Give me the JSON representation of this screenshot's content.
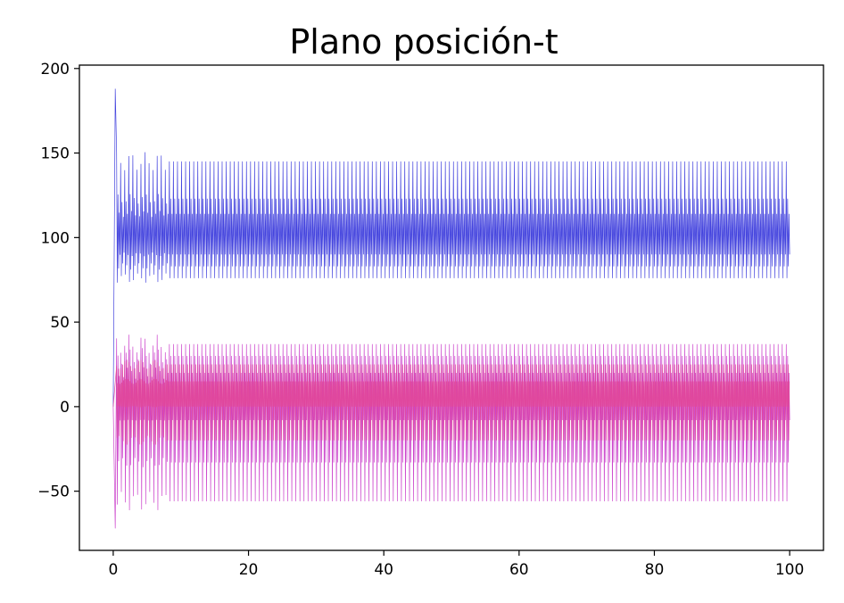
{
  "chart_data": {
    "type": "line",
    "title": "Plano posición-t",
    "xlabel": "",
    "ylabel": "",
    "xlim": [
      -5,
      105
    ],
    "ylim": [
      -85,
      202
    ],
    "xticks": [
      0,
      20,
      40,
      60,
      80,
      100
    ],
    "xtick_labels": [
      "0",
      "20",
      "40",
      "60",
      "80",
      "100"
    ],
    "yticks": [
      -50,
      0,
      50,
      100,
      150,
      200
    ],
    "ytick_labels": [
      "−50",
      "0",
      "50",
      "100",
      "150",
      "200"
    ],
    "grid": false,
    "legend": "none",
    "series": [
      {
        "color": "#3b3bdc",
        "t_range": [
          0,
          100
        ],
        "initial_value": 0,
        "initial_peak": 188,
        "steady_range": [
          53,
          145
        ],
        "steady_levels": [
          76,
          83,
          90,
          114,
          123,
          145
        ],
        "oscillation_period": 1.2
      },
      {
        "color": "#c93ac9",
        "t_range": [
          0,
          100
        ],
        "initial_value": 0,
        "initial_trough": -72,
        "steady_range": [
          -56,
          37
        ],
        "steady_levels": [
          -56,
          -33,
          -8,
          20,
          30,
          37
        ],
        "oscillation_period": 1.2
      },
      {
        "color": "#e0479a",
        "t_range": [
          0,
          100
        ],
        "initial_value": 0,
        "steady_range": [
          -20,
          25
        ],
        "steady_levels": [
          -20,
          0,
          15,
          25
        ],
        "oscillation_period": 0.6
      }
    ]
  }
}
